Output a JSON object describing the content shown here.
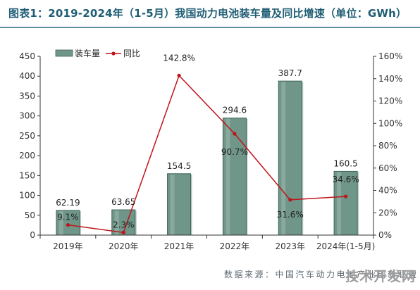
{
  "header": {
    "title": "图表1：2019-2024年（1-5月）我国动力电池装车量及同比增速（单位：GWh）"
  },
  "chart_data": {
    "type": "bar+line",
    "categories": [
      "2019年",
      "2020年",
      "2021年",
      "2022年",
      "2023年",
      "2024年(1-5月)"
    ],
    "series": [
      {
        "name": "装车量",
        "type": "bar",
        "axis": "left",
        "values": [
          62.19,
          63.65,
          154.5,
          294.6,
          387.7,
          160.5
        ],
        "labels": [
          "62.19",
          "63.65",
          "154.5",
          "294.6",
          "387.7",
          "160.5"
        ],
        "color": "#6f9688"
      },
      {
        "name": "同比",
        "type": "line",
        "axis": "right",
        "values": [
          9.1,
          2.3,
          142.8,
          90.7,
          31.6,
          34.6
        ],
        "labels": [
          "9.1%",
          "2.3%",
          "142.8%",
          "90.7%",
          "31.6%",
          "34.6%"
        ],
        "color": "#c0141b"
      }
    ],
    "y_left": {
      "min": 0,
      "max": 450,
      "step": 50,
      "ticks": [
        "0",
        "50",
        "100",
        "150",
        "200",
        "250",
        "300",
        "350",
        "400",
        "450"
      ]
    },
    "y_right": {
      "min": 0,
      "max": 160,
      "step": 20,
      "ticks": [
        "0%",
        "20%",
        "40%",
        "60%",
        "80%",
        "100%",
        "120%",
        "140%",
        "160%"
      ]
    },
    "legend": {
      "position": "top-left"
    },
    "grid": false
  },
  "footer": {
    "source": "数据来源：中国汽车动力电池产业创新联盟",
    "watermark": "技术开发网"
  }
}
